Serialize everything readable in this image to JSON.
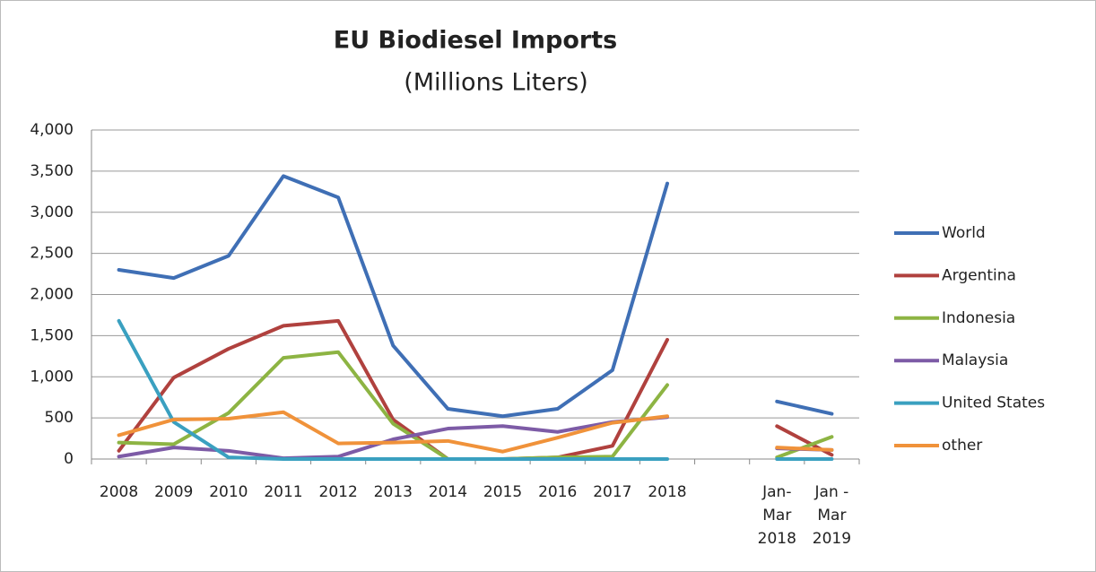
{
  "chart_data": {
    "type": "line",
    "title": "EU Biodiesel Imports",
    "subtitle": "(Millions Liters)",
    "categories": [
      "2008",
      "2009",
      "2010",
      "2011",
      "2012",
      "2013",
      "2014",
      "2015",
      "2016",
      "2017",
      "2018",
      null,
      "Jan-\nMar\n2018",
      "Jan -\nMar\n2019"
    ],
    "series": [
      {
        "name": "World",
        "color": "#3f6fb5",
        "values": [
          2300,
          2200,
          2470,
          3440,
          3180,
          1380,
          610,
          520,
          610,
          1080,
          3350,
          null,
          700,
          550
        ]
      },
      {
        "name": "Argentina",
        "color": "#b0413e",
        "values": [
          100,
          990,
          1340,
          1620,
          1680,
          480,
          0,
          0,
          20,
          160,
          1450,
          null,
          400,
          50
        ]
      },
      {
        "name": "Indonesia",
        "color": "#8db443",
        "values": [
          200,
          180,
          560,
          1230,
          1300,
          430,
          0,
          0,
          20,
          30,
          900,
          null,
          20,
          270
        ]
      },
      {
        "name": "Malaysia",
        "color": "#7d5ba6",
        "values": [
          30,
          140,
          100,
          10,
          30,
          240,
          370,
          400,
          330,
          450,
          510,
          null,
          130,
          110
        ]
      },
      {
        "name": "United States",
        "color": "#3aa0c0",
        "values": [
          1680,
          450,
          20,
          0,
          0,
          0,
          0,
          0,
          0,
          0,
          0,
          null,
          0,
          0
        ]
      },
      {
        "name": "other",
        "color": "#f0923a",
        "values": [
          290,
          480,
          490,
          570,
          190,
          200,
          220,
          90,
          260,
          440,
          520,
          null,
          140,
          110
        ]
      }
    ],
    "ylim": [
      0,
      4000
    ],
    "yticks": [
      0,
      {
        "value": 500,
        "label": "500"
      },
      {
        "value": 1000,
        "label": "1,000"
      },
      {
        "value": 1500,
        "label": "1,500"
      },
      {
        "value": 2000,
        "label": "2,000"
      },
      {
        "value": 2500,
        "label": "2,500"
      },
      {
        "value": 3000,
        "label": "3,000"
      },
      {
        "value": 3500,
        "label": "3,500"
      },
      {
        "value": 4000,
        "label": "4,000"
      }
    ],
    "grid": true,
    "legend": "right"
  }
}
